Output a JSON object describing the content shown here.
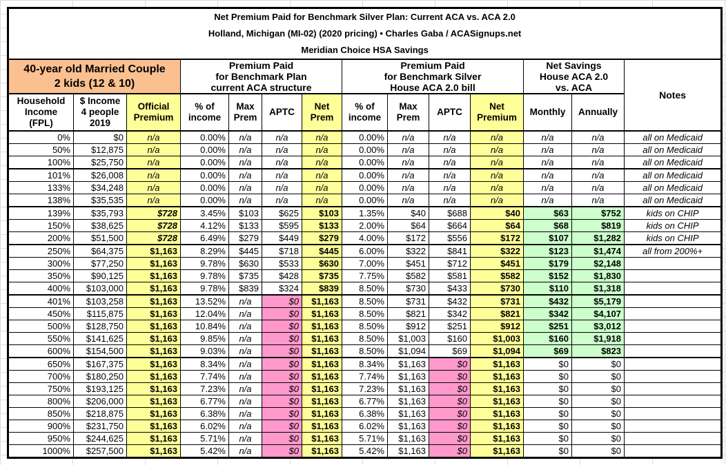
{
  "title": {
    "line1": "Net Premium Paid for Benchmark Silver Plan: Current ACA vs. ACA 2.0",
    "line2": "Holland, Michigan (MI-02) (2020 pricing) • Charles Gaba / ACASignups.net",
    "line3": "Meridian Choice HSA Savings"
  },
  "header": {
    "subject": "40-year old Married Couple\n2 kids (12 & 10)",
    "group_aca": "Premium Paid\nfor Benchmark Plan\ncurrent ACA structure",
    "group_aca2": "Premium Paid\nfor Benchmark Silver\nHouse ACA 2.0 bill",
    "group_savings": "Net Savings\nHouse ACA 2.0\nvs. ACA",
    "notes_label": "Notes",
    "columns": [
      "Household\nIncome\n(FPL)",
      "$ Income\n4 people\n2019",
      "Official\nPremium",
      "% of\nincome",
      "Max\nPrem",
      "APTC",
      "Net\nPrem",
      "% of\nincome",
      "Max\nPrem",
      "APTC",
      "Net\nPremium",
      "Monthly",
      "Annually"
    ]
  },
  "colors": {
    "highlight_yellow": "#FFFF99",
    "highlight_pink": "#FF99CC",
    "highlight_green": "#CCFFCC",
    "header_orange": "#FAC090"
  },
  "rows": [
    {
      "fpl": "0%",
      "income": "$0",
      "official": "n/a",
      "aca": {
        "pct": "0.00%",
        "max": "n/a",
        "aptc": "n/a",
        "net": "n/a"
      },
      "h": {
        "pct": "0.00%",
        "max": "n/a",
        "aptc": "n/a",
        "net": "n/a"
      },
      "sav": {
        "monthly": "n/a",
        "annually": "n/a"
      },
      "note": "all on Medicaid",
      "sep": false
    },
    {
      "fpl": "50%",
      "income": "$12,875",
      "official": "n/a",
      "aca": {
        "pct": "0.00%",
        "max": "n/a",
        "aptc": "n/a",
        "net": "n/a"
      },
      "h": {
        "pct": "0.00%",
        "max": "n/a",
        "aptc": "n/a",
        "net": "n/a"
      },
      "sav": {
        "monthly": "n/a",
        "annually": "n/a"
      },
      "note": "all on Medicaid",
      "sep": false
    },
    {
      "fpl": "100%",
      "income": "$25,750",
      "official": "n/a",
      "aca": {
        "pct": "0.00%",
        "max": "n/a",
        "aptc": "n/a",
        "net": "n/a"
      },
      "h": {
        "pct": "0.00%",
        "max": "n/a",
        "aptc": "n/a",
        "net": "n/a"
      },
      "sav": {
        "monthly": "n/a",
        "annually": "n/a"
      },
      "note": "all on Medicaid",
      "sep": true
    },
    {
      "fpl": "101%",
      "income": "$26,008",
      "official": "n/a",
      "aca": {
        "pct": "0.00%",
        "max": "n/a",
        "aptc": "n/a",
        "net": "n/a"
      },
      "h": {
        "pct": "0.00%",
        "max": "n/a",
        "aptc": "n/a",
        "net": "n/a"
      },
      "sav": {
        "monthly": "n/a",
        "annually": "n/a"
      },
      "note": "all on Medicaid",
      "sep": false
    },
    {
      "fpl": "133%",
      "income": "$34,248",
      "official": "n/a",
      "aca": {
        "pct": "0.00%",
        "max": "n/a",
        "aptc": "n/a",
        "net": "n/a"
      },
      "h": {
        "pct": "0.00%",
        "max": "n/a",
        "aptc": "n/a",
        "net": "n/a"
      },
      "sav": {
        "monthly": "n/a",
        "annually": "n/a"
      },
      "note": "all on Medicaid",
      "sep": false
    },
    {
      "fpl": "138%",
      "income": "$35,535",
      "official": "n/a",
      "aca": {
        "pct": "0.00%",
        "max": "n/a",
        "aptc": "n/a",
        "net": "n/a"
      },
      "h": {
        "pct": "0.00%",
        "max": "n/a",
        "aptc": "n/a",
        "net": "n/a"
      },
      "sav": {
        "monthly": "n/a",
        "annually": "n/a"
      },
      "note": "all on Medicaid",
      "sep": true
    },
    {
      "fpl": "139%",
      "income": "$35,793",
      "official": "$728",
      "aca": {
        "pct": "3.45%",
        "max": "$103",
        "aptc": "$625",
        "net": "$103"
      },
      "h": {
        "pct": "1.35%",
        "max": "$40",
        "aptc": "$688",
        "net": "$40"
      },
      "sav": {
        "monthly": "$63",
        "annually": "$752"
      },
      "note": "kids on CHIP",
      "sep": false
    },
    {
      "fpl": "150%",
      "income": "$38,625",
      "official": "$728",
      "aca": {
        "pct": "4.12%",
        "max": "$133",
        "aptc": "$595",
        "net": "$133"
      },
      "h": {
        "pct": "2.00%",
        "max": "$64",
        "aptc": "$664",
        "net": "$64"
      },
      "sav": {
        "monthly": "$68",
        "annually": "$819"
      },
      "note": "kids on CHIP",
      "sep": false
    },
    {
      "fpl": "200%",
      "income": "$51,500",
      "official": "$728",
      "aca": {
        "pct": "6.49%",
        "max": "$279",
        "aptc": "$449",
        "net": "$279"
      },
      "h": {
        "pct": "4.00%",
        "max": "$172",
        "aptc": "$556",
        "net": "$172"
      },
      "sav": {
        "monthly": "$107",
        "annually": "$1,282"
      },
      "note": "kids on CHIP",
      "sep": true
    },
    {
      "fpl": "250%",
      "income": "$64,375",
      "official": "$1,163",
      "aca": {
        "pct": "8.29%",
        "max": "$445",
        "aptc": "$718",
        "net": "$445"
      },
      "h": {
        "pct": "6.00%",
        "max": "$322",
        "aptc": "$841",
        "net": "$322"
      },
      "sav": {
        "monthly": "$123",
        "annually": "$1,474"
      },
      "note": "all from 200%+",
      "sep": false
    },
    {
      "fpl": "300%",
      "income": "$77,250",
      "official": "$1,163",
      "aca": {
        "pct": "9.78%",
        "max": "$630",
        "aptc": "$533",
        "net": "$630"
      },
      "h": {
        "pct": "7.00%",
        "max": "$451",
        "aptc": "$712",
        "net": "$451"
      },
      "sav": {
        "monthly": "$179",
        "annually": "$2,148"
      },
      "note": "",
      "sep": false
    },
    {
      "fpl": "350%",
      "income": "$90,125",
      "official": "$1,163",
      "aca": {
        "pct": "9.78%",
        "max": "$735",
        "aptc": "$428",
        "net": "$735"
      },
      "h": {
        "pct": "7.75%",
        "max": "$582",
        "aptc": "$581",
        "net": "$582"
      },
      "sav": {
        "monthly": "$152",
        "annually": "$1,830"
      },
      "note": "",
      "sep": false
    },
    {
      "fpl": "400%",
      "income": "$103,000",
      "official": "$1,163",
      "aca": {
        "pct": "9.78%",
        "max": "$839",
        "aptc": "$324",
        "net": "$839"
      },
      "h": {
        "pct": "8.50%",
        "max": "$730",
        "aptc": "$433",
        "net": "$730"
      },
      "sav": {
        "monthly": "$110",
        "annually": "$1,318"
      },
      "note": "",
      "sep": true
    },
    {
      "fpl": "401%",
      "income": "$103,258",
      "official": "$1,163",
      "aca": {
        "pct": "13.52%",
        "max": "n/a",
        "aptc": "$0",
        "net": "$1,163"
      },
      "h": {
        "pct": "8.50%",
        "max": "$731",
        "aptc": "$432",
        "net": "$731"
      },
      "sav": {
        "monthly": "$432",
        "annually": "$5,179"
      },
      "note": "",
      "sep": false
    },
    {
      "fpl": "450%",
      "income": "$115,875",
      "official": "$1,163",
      "aca": {
        "pct": "12.04%",
        "max": "n/a",
        "aptc": "$0",
        "net": "$1,163"
      },
      "h": {
        "pct": "8.50%",
        "max": "$821",
        "aptc": "$342",
        "net": "$821"
      },
      "sav": {
        "monthly": "$342",
        "annually": "$4,107"
      },
      "note": "",
      "sep": false
    },
    {
      "fpl": "500%",
      "income": "$128,750",
      "official": "$1,163",
      "aca": {
        "pct": "10.84%",
        "max": "n/a",
        "aptc": "$0",
        "net": "$1,163"
      },
      "h": {
        "pct": "8.50%",
        "max": "$912",
        "aptc": "$251",
        "net": "$912"
      },
      "sav": {
        "monthly": "$251",
        "annually": "$3,012"
      },
      "note": "",
      "sep": false
    },
    {
      "fpl": "550%",
      "income": "$141,625",
      "official": "$1,163",
      "aca": {
        "pct": "9.85%",
        "max": "n/a",
        "aptc": "$0",
        "net": "$1,163"
      },
      "h": {
        "pct": "8.50%",
        "max": "$1,003",
        "aptc": "$160",
        "net": "$1,003"
      },
      "sav": {
        "monthly": "$160",
        "annually": "$1,918"
      },
      "note": "",
      "sep": false
    },
    {
      "fpl": "600%",
      "income": "$154,500",
      "official": "$1,163",
      "aca": {
        "pct": "9.03%",
        "max": "n/a",
        "aptc": "$0",
        "net": "$1,163"
      },
      "h": {
        "pct": "8.50%",
        "max": "$1,094",
        "aptc": "$69",
        "net": "$1,094"
      },
      "sav": {
        "monthly": "$69",
        "annually": "$823"
      },
      "note": "",
      "sep": true
    },
    {
      "fpl": "650%",
      "income": "$167,375",
      "official": "$1,163",
      "aca": {
        "pct": "8.34%",
        "max": "n/a",
        "aptc": "$0",
        "net": "$1,163"
      },
      "h": {
        "pct": "8.34%",
        "max": "$1,163",
        "aptc": "$0",
        "net": "$1,163"
      },
      "sav": {
        "monthly": "$0",
        "annually": "$0"
      },
      "note": "",
      "sep": false
    },
    {
      "fpl": "700%",
      "income": "$180,250",
      "official": "$1,163",
      "aca": {
        "pct": "7.74%",
        "max": "n/a",
        "aptc": "$0",
        "net": "$1,163"
      },
      "h": {
        "pct": "7.74%",
        "max": "$1,163",
        "aptc": "$0",
        "net": "$1,163"
      },
      "sav": {
        "monthly": "$0",
        "annually": "$0"
      },
      "note": "",
      "sep": false
    },
    {
      "fpl": "750%",
      "income": "$193,125",
      "official": "$1,163",
      "aca": {
        "pct": "7.23%",
        "max": "n/a",
        "aptc": "$0",
        "net": "$1,163"
      },
      "h": {
        "pct": "7.23%",
        "max": "$1,163",
        "aptc": "$0",
        "net": "$1,163"
      },
      "sav": {
        "monthly": "$0",
        "annually": "$0"
      },
      "note": "",
      "sep": false
    },
    {
      "fpl": "800%",
      "income": "$206,000",
      "official": "$1,163",
      "aca": {
        "pct": "6.77%",
        "max": "n/a",
        "aptc": "$0",
        "net": "$1,163"
      },
      "h": {
        "pct": "6.77%",
        "max": "$1,163",
        "aptc": "$0",
        "net": "$1,163"
      },
      "sav": {
        "monthly": "$0",
        "annually": "$0"
      },
      "note": "",
      "sep": false
    },
    {
      "fpl": "850%",
      "income": "$218,875",
      "official": "$1,163",
      "aca": {
        "pct": "6.38%",
        "max": "n/a",
        "aptc": "$0",
        "net": "$1,163"
      },
      "h": {
        "pct": "6.38%",
        "max": "$1,163",
        "aptc": "$0",
        "net": "$1,163"
      },
      "sav": {
        "monthly": "$0",
        "annually": "$0"
      },
      "note": "",
      "sep": false
    },
    {
      "fpl": "900%",
      "income": "$231,750",
      "official": "$1,163",
      "aca": {
        "pct": "6.02%",
        "max": "n/a",
        "aptc": "$0",
        "net": "$1,163"
      },
      "h": {
        "pct": "6.02%",
        "max": "$1,163",
        "aptc": "$0",
        "net": "$1,163"
      },
      "sav": {
        "monthly": "$0",
        "annually": "$0"
      },
      "note": "",
      "sep": false
    },
    {
      "fpl": "950%",
      "income": "$244,625",
      "official": "$1,163",
      "aca": {
        "pct": "5.71%",
        "max": "n/a",
        "aptc": "$0",
        "net": "$1,163"
      },
      "h": {
        "pct": "5.71%",
        "max": "$1,163",
        "aptc": "$0",
        "net": "$1,163"
      },
      "sav": {
        "monthly": "$0",
        "annually": "$0"
      },
      "note": "",
      "sep": false
    },
    {
      "fpl": "1000%",
      "income": "$257,500",
      "official": "$1,163",
      "aca": {
        "pct": "5.42%",
        "max": "n/a",
        "aptc": "$0",
        "net": "$1,163"
      },
      "h": {
        "pct": "5.42%",
        "max": "$1,163",
        "aptc": "$0",
        "net": "$1,163"
      },
      "sav": {
        "monthly": "$0",
        "annually": "$0"
      },
      "note": "",
      "sep": false
    }
  ]
}
